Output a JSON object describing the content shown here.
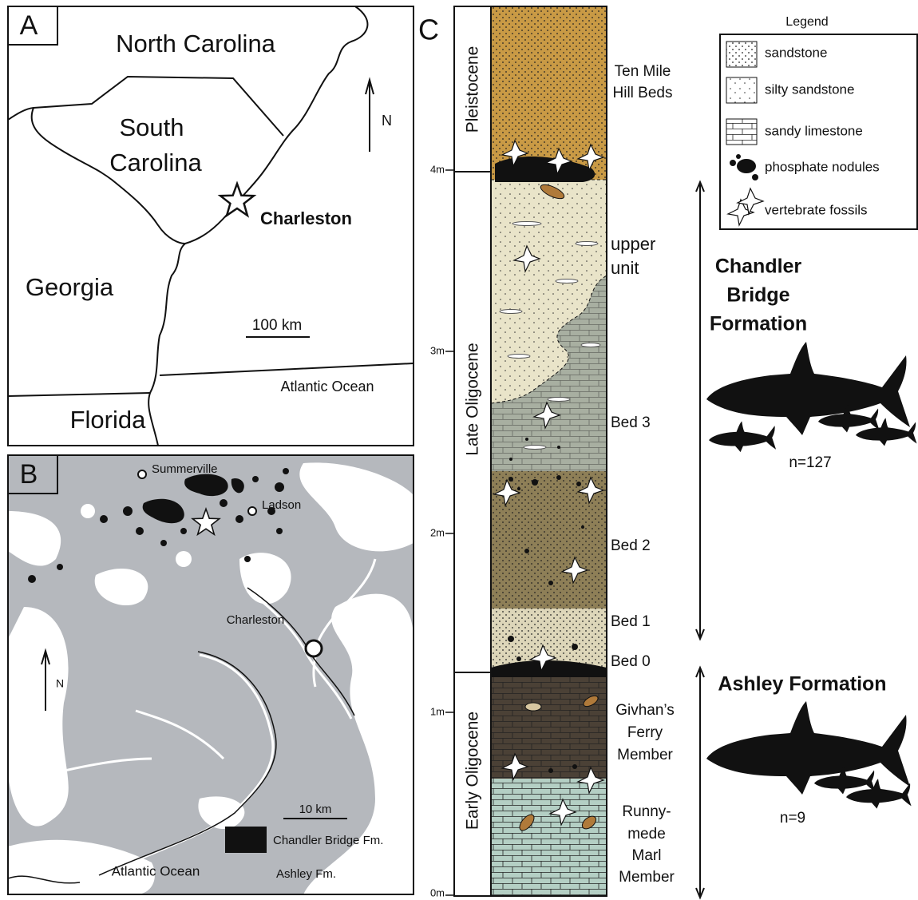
{
  "panel_a": {
    "label": "A",
    "regions": [
      [
        "North Carolina"
      ],
      [
        "South",
        "Carolina"
      ],
      [
        "Georgia"
      ],
      [
        "Florida"
      ]
    ],
    "city": "Charleston",
    "north": "N",
    "scale": "100 km",
    "ocean": "Atlantic Ocean"
  },
  "panel_b": {
    "label": "B",
    "towns": [
      "Summerville",
      "Ladson",
      "Charleston"
    ],
    "north": "N",
    "scale": "10 km",
    "ocean": "Atlantic Ocean",
    "legend": [
      "Chandler Bridge Fm.",
      "Ashley Fm."
    ]
  },
  "panel_c": {
    "label": "C",
    "depth_ticks": [
      "4m",
      "3m",
      "2m",
      "1m",
      "0m"
    ],
    "epochs": [
      "Pleistocene",
      "Late Oligocene",
      "Early Oligocene"
    ],
    "units": [
      [
        "Ten Mile",
        "Hill Beds"
      ],
      [
        "upper",
        "unit"
      ],
      [
        "Bed 3"
      ],
      [
        "Bed 2"
      ],
      [
        "Bed 1"
      ],
      [
        "Bed 0"
      ],
      [
        "Givhan’s",
        "Ferry",
        "Member"
      ],
      [
        "Runny-",
        "mede",
        "Marl",
        "Member"
      ]
    ],
    "formations": [
      {
        "name": [
          "Chandler",
          "Bridge",
          "Formation"
        ],
        "count": "n=127"
      },
      {
        "name": [
          "Ashley Formation"
        ],
        "count": "n=9"
      }
    ],
    "legend": {
      "title": "Legend",
      "items": [
        "sandstone",
        "silty sandstone",
        "sandy limestone",
        "phosphate nodules",
        "vertebrate fossils"
      ]
    }
  }
}
